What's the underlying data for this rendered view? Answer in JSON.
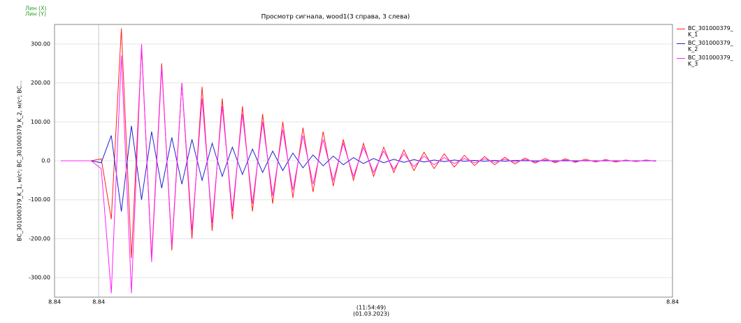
{
  "chart_data": {
    "type": "line",
    "corner_labels": [
      "Лин (X)",
      "Лин (Y)"
    ],
    "title": "Просмотр сигнала, wood1(3 справа, 3 слева)",
    "ylabel": "BC_301000379_K_1, м/с²; BC_301000379_K_2, м/с²; BC...",
    "xlabel": [
      "(11:54:49)",
      "(01.03.2023)"
    ],
    "xlim": [
      8.8351,
      8.8449
    ],
    "xticks": [
      {
        "value": 8.8351,
        "label": "8.84"
      },
      {
        "value": 8.8358,
        "label": "8.84"
      },
      {
        "value": 8.8449,
        "label": "8.84"
      }
    ],
    "ylim": [
      -350,
      350
    ],
    "yticks": [
      {
        "value": -300,
        "label": "-300.00"
      },
      {
        "value": -200,
        "label": "-200.00"
      },
      {
        "value": -100,
        "label": "-100.00"
      },
      {
        "value": 0,
        "label": "0.0"
      },
      {
        "value": 100,
        "label": "100.00"
      },
      {
        "value": 200,
        "label": "200.00"
      },
      {
        "value": 300,
        "label": "300.00"
      }
    ],
    "grid": true,
    "x": [
      8.8352,
      8.83536,
      8.83552,
      8.83568,
      8.83584,
      8.836,
      8.83616,
      8.83632,
      8.83648,
      8.83664,
      8.8368,
      8.83696,
      8.83712,
      8.83728,
      8.83744,
      8.8376,
      8.83776,
      8.83792,
      8.83808,
      8.83824,
      8.8384,
      8.83856,
      8.83872,
      8.83888,
      8.83904,
      8.8392,
      8.83936,
      8.83952,
      8.83968,
      8.83984,
      8.84,
      8.84016,
      8.84032,
      8.84048,
      8.84064,
      8.8408,
      8.84096,
      8.84112,
      8.84128,
      8.84144,
      8.8416,
      8.84176,
      8.84192,
      8.84208,
      8.84224,
      8.8424,
      8.84256,
      8.84272,
      8.84288,
      8.84304,
      8.8432,
      8.84336,
      8.84352,
      8.84368,
      8.84384,
      8.844,
      8.84416,
      8.84432,
      8.84448,
      8.84464
    ],
    "series": [
      {
        "name": "BC_301000379_K_1",
        "color": "#ff2020",
        "values": [
          0,
          0,
          0,
          0,
          5,
          -150,
          340,
          -250,
          290,
          -250,
          250,
          -230,
          200,
          -200,
          190,
          -180,
          160,
          -150,
          140,
          -130,
          120,
          -110,
          100,
          -95,
          85,
          -80,
          75,
          -65,
          55,
          -50,
          45,
          -40,
          35,
          -30,
          28,
          -25,
          22,
          -20,
          18,
          -16,
          14,
          -12,
          11,
          -10,
          9,
          -8,
          7,
          -6,
          6,
          -5,
          5,
          -4,
          4,
          -3,
          3,
          -3,
          2,
          -2,
          2,
          -1
        ]
      },
      {
        "name": "BC_301000379_K_2",
        "color": "#2020d0",
        "values": [
          0,
          0,
          0,
          0,
          -5,
          65,
          -130,
          90,
          -100,
          75,
          -70,
          60,
          -60,
          55,
          -50,
          45,
          -40,
          35,
          -35,
          30,
          -30,
          25,
          -25,
          20,
          -18,
          15,
          -13,
          12,
          -10,
          8,
          -7,
          6,
          -5,
          4,
          -4,
          3,
          -3,
          2,
          -2,
          2,
          -1,
          1,
          -1,
          1,
          -1,
          1,
          0,
          0,
          0,
          0,
          0,
          0,
          0,
          0,
          0,
          0,
          0,
          0,
          0,
          0
        ]
      },
      {
        "name": "BC_301000379_K_3",
        "color": "#ff20ff",
        "values": [
          0,
          0,
          0,
          0,
          -20,
          -340,
          270,
          -340,
          300,
          -260,
          240,
          -220,
          200,
          -180,
          160,
          -160,
          140,
          -130,
          120,
          -110,
          100,
          -90,
          80,
          -75,
          65,
          -60,
          55,
          -50,
          45,
          -40,
          35,
          -30,
          25,
          -22,
          18,
          -15,
          12,
          -10,
          8,
          -7,
          6,
          -5,
          5,
          -4,
          4,
          -3,
          3,
          -3,
          2,
          -2,
          2,
          -2,
          1,
          -1,
          1,
          -1,
          1,
          -1,
          1,
          -1
        ]
      }
    ]
  }
}
